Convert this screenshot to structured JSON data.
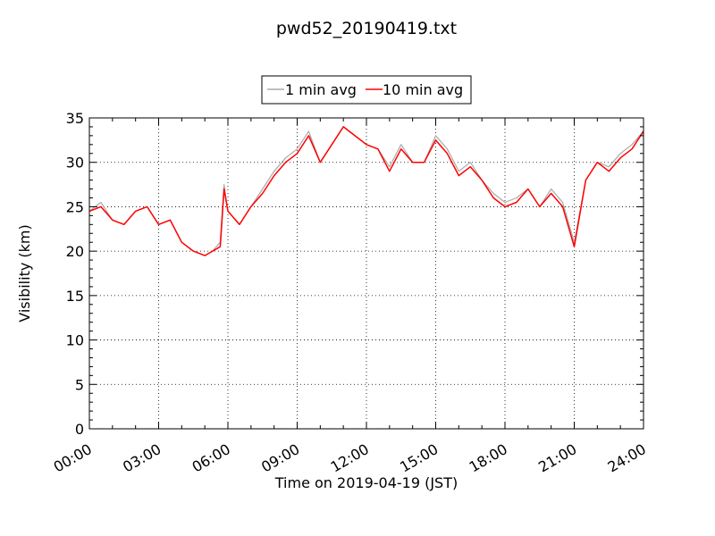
{
  "chart_data": {
    "type": "line",
    "title": "pwd52_20190419.txt",
    "xlabel": "Time on 2019-04-19 (JST)",
    "ylabel": "Visibility (km)",
    "xlim": [
      "00:00",
      "24:00"
    ],
    "ylim": [
      0,
      35
    ],
    "x_ticks": [
      "00:00",
      "03:00",
      "06:00",
      "09:00",
      "12:00",
      "15:00",
      "18:00",
      "21:00",
      "24:00"
    ],
    "y_ticks": [
      "0",
      "5",
      "10",
      "15",
      "20",
      "25",
      "30",
      "35"
    ],
    "grid": true,
    "legend_position": "top-center",
    "x": [
      "00:00",
      "00:30",
      "01:00",
      "01:30",
      "02:00",
      "02:30",
      "03:00",
      "03:30",
      "04:00",
      "04:30",
      "05:00",
      "05:20",
      "05:40",
      "05:50",
      "06:00",
      "06:30",
      "07:00",
      "07:30",
      "08:00",
      "08:30",
      "09:00",
      "09:30",
      "10:00",
      "10:30",
      "11:00",
      "11:30",
      "12:00",
      "12:30",
      "13:00",
      "13:30",
      "14:00",
      "14:30",
      "15:00",
      "15:30",
      "16:00",
      "16:30",
      "17:00",
      "17:30",
      "18:00",
      "18:30",
      "19:00",
      "19:30",
      "20:00",
      "20:30",
      "21:00",
      "21:30",
      "22:00",
      "22:30",
      "23:00",
      "23:30",
      "24:00"
    ],
    "series": [
      {
        "name": "1 min avg",
        "color": "#aaaaaa",
        "values": [
          24.5,
          25.5,
          23.5,
          23.0,
          24.5,
          25.0,
          23.0,
          23.5,
          21.0,
          20.0,
          19.5,
          20.0,
          21.0,
          27.5,
          24.5,
          23.0,
          25.0,
          27.0,
          29.0,
          30.5,
          31.5,
          33.5,
          30.0,
          32.0,
          34.0,
          33.0,
          32.0,
          31.5,
          29.5,
          32.0,
          30.0,
          30.0,
          33.0,
          31.5,
          29.0,
          30.0,
          28.0,
          26.5,
          25.5,
          26.0,
          27.0,
          25.0,
          27.0,
          25.5,
          21.0,
          28.0,
          30.0,
          29.5,
          31.0,
          32.0,
          33.5
        ]
      },
      {
        "name": "10 min avg",
        "color": "#ff0000",
        "values": [
          24.5,
          25.0,
          23.5,
          23.0,
          24.5,
          25.0,
          23.0,
          23.5,
          21.0,
          20.0,
          19.5,
          20.0,
          20.5,
          27.0,
          24.5,
          23.0,
          25.0,
          26.5,
          28.5,
          30.0,
          31.0,
          33.0,
          30.0,
          32.0,
          34.0,
          33.0,
          32.0,
          31.5,
          29.0,
          31.5,
          30.0,
          30.0,
          32.5,
          31.0,
          28.5,
          29.5,
          28.0,
          26.0,
          25.0,
          25.5,
          27.0,
          25.0,
          26.5,
          25.0,
          20.5,
          28.0,
          30.0,
          29.0,
          30.5,
          31.5,
          33.5
        ]
      }
    ]
  }
}
